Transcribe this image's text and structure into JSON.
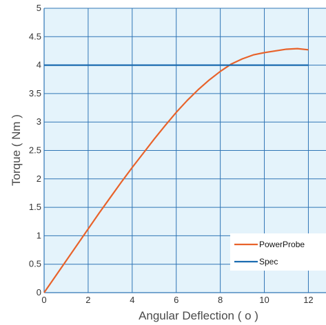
{
  "chart_data": {
    "type": "line",
    "title": "",
    "xlabel": "Angular Deflection ( o )",
    "ylabel": "Torque ( Nm )",
    "xlim": [
      0,
      12.8
    ],
    "ylim": [
      0,
      5
    ],
    "x_ticks": [
      "0",
      "2",
      "4",
      "6",
      "8",
      "10",
      "12"
    ],
    "y_ticks": [
      "0",
      "0.5",
      "1",
      "1.5",
      "2",
      "2.5",
      "3",
      "3.5",
      "4",
      "4.5",
      "5"
    ],
    "grid": true,
    "legend_position": "bottom-right",
    "series": [
      {
        "name": "PowerProbe",
        "color": "#e8622a",
        "x": [
          0,
          0.5,
          1,
          1.5,
          2,
          2.5,
          3,
          3.5,
          4,
          4.5,
          5,
          5.5,
          6,
          6.5,
          7,
          7.5,
          8,
          8.5,
          9,
          9.5,
          10,
          10.5,
          11,
          11.5,
          12
        ],
        "y": [
          0,
          0.28,
          0.56,
          0.84,
          1.12,
          1.4,
          1.67,
          1.94,
          2.2,
          2.45,
          2.7,
          2.94,
          3.17,
          3.38,
          3.57,
          3.74,
          3.89,
          4.02,
          4.11,
          4.18,
          4.22,
          4.25,
          4.28,
          4.29,
          4.27
        ]
      },
      {
        "name": "Spec",
        "color": "#1a6bb0",
        "x": [
          0,
          12
        ],
        "y": [
          4,
          4
        ]
      }
    ]
  }
}
